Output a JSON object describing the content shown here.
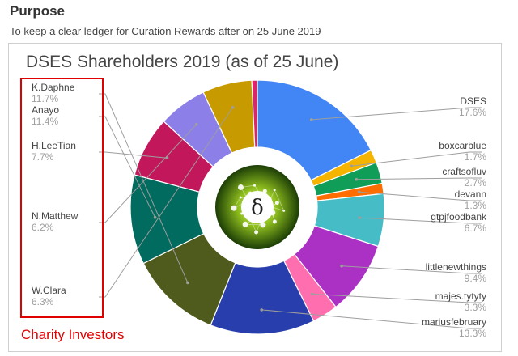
{
  "header": {
    "purpose": "Purpose",
    "subtitle": "To keep a clear ledger for Curation Rewards after on 25 June 2019"
  },
  "annotation": {
    "label": "Charity Investors",
    "color": "#e00000"
  },
  "center_logo": {
    "symbol": "δ",
    "icon": "network-logo-icon"
  },
  "chart_data": {
    "type": "pie",
    "donut": true,
    "title": "DSES Shareholders 2019 (as of 25 June)",
    "slices": [
      {
        "label": "DSES",
        "value": 17.6,
        "pct_label": "17.6%",
        "color": "#4285f4"
      },
      {
        "label": "boxcarblue",
        "value": 1.7,
        "pct_label": "1.7%",
        "color": "#f4b400"
      },
      {
        "label": "craftsofluv",
        "value": 2.7,
        "pct_label": "2.7%",
        "color": "#0f9d58"
      },
      {
        "label": "devann",
        "value": 1.3,
        "pct_label": "1.3%",
        "color": "#ff6d00"
      },
      {
        "label": "gtpjfoodbank",
        "value": 6.7,
        "pct_label": "6.7%",
        "color": "#46bdc6"
      },
      {
        "label": "littlenewthings",
        "value": 9.4,
        "pct_label": "9.4%",
        "color": "#ab30c4"
      },
      {
        "label": "majes.tytyty",
        "value": 3.3,
        "pct_label": "3.3%",
        "color": "#ff6fb0"
      },
      {
        "label": "mariusfebruary",
        "value": 13.3,
        "pct_label": "13.3%",
        "color": "#283eac"
      },
      {
        "label": "K.Daphne",
        "value": 11.7,
        "pct_label": "11.7%",
        "color": "#4f5a1d"
      },
      {
        "label": "Anayo",
        "value": 11.4,
        "pct_label": "11.4%",
        "color": "#006b5e"
      },
      {
        "label": "H.LeeTian",
        "value": 7.7,
        "pct_label": "7.7%",
        "color": "#c2185b"
      },
      {
        "label": "N.Matthew",
        "value": 6.2,
        "pct_label": "6.2%",
        "color": "#8c7fe8"
      },
      {
        "label": "W.Clara",
        "value": 6.3,
        "pct_label": "6.3%",
        "color": "#c79a00"
      },
      {
        "label": "",
        "value": 0.7,
        "pct_label": "",
        "color": "#e0246a"
      }
    ]
  }
}
